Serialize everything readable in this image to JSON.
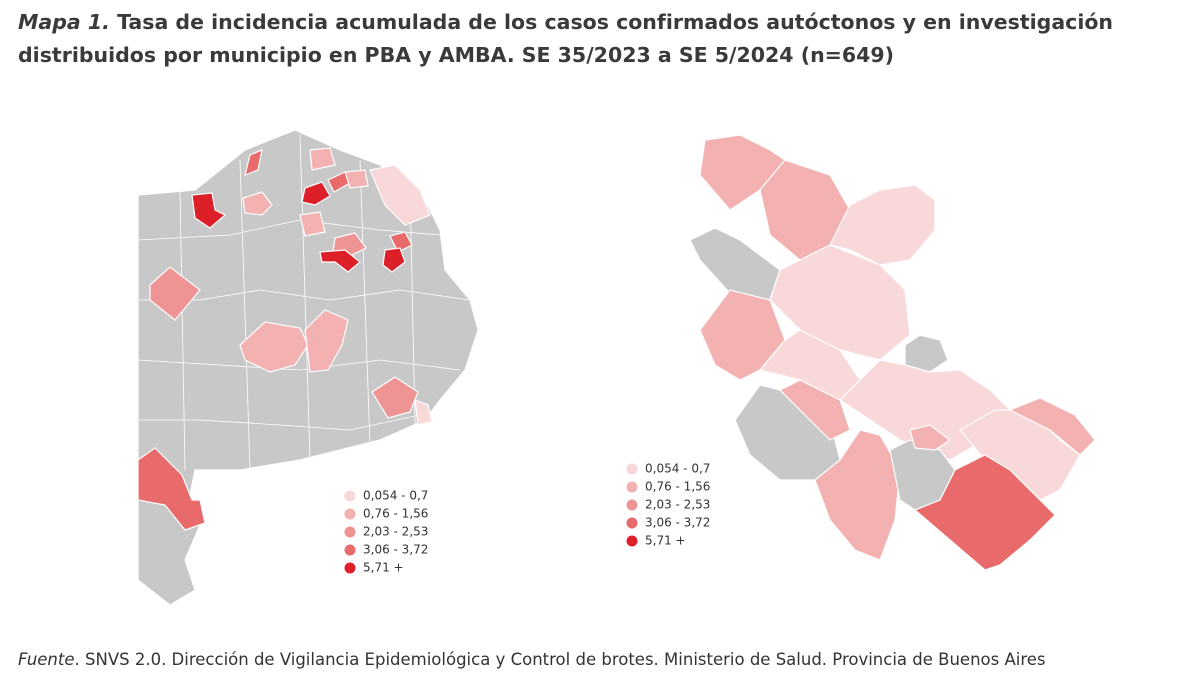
{
  "title": {
    "label": "Mapa 1.",
    "text": "Tasa de incidencia acumulada de los casos confirmados autóctonos y en investigación distribuidos por municipio en PBA y AMBA. SE 35/2023 a SE 5/2024 (n=649)"
  },
  "legends": [
    [
      {
        "label": "0,054 - 0,7",
        "color": "#f8d8d8"
      },
      {
        "label": "0,76 - 1,56",
        "color": "#f3b1b1"
      },
      {
        "label": "2,03 - 2,53",
        "color": "#ee9494"
      },
      {
        "label": "3,06 - 3,72",
        "color": "#e86a6a"
      },
      {
        "label": "5,71 +",
        "color": "#dc1f28"
      }
    ],
    [
      {
        "label": "0,054 - 0,7",
        "color": "#f8d8d8"
      },
      {
        "label": "0,76 - 1,56",
        "color": "#f3b1b1"
      },
      {
        "label": "2,03 - 2,53",
        "color": "#ee9494"
      },
      {
        "label": "3,06 - 3,72",
        "color": "#e86a6a"
      },
      {
        "label": "5,71 +",
        "color": "#dc1f28"
      }
    ]
  ],
  "source": {
    "label": "Fuente",
    "text": ". SNVS 2.0. Dirección de Vigilancia Epidemiológica y Control de brotes. Ministerio de Salud. Provincia de Buenos Aires"
  }
}
